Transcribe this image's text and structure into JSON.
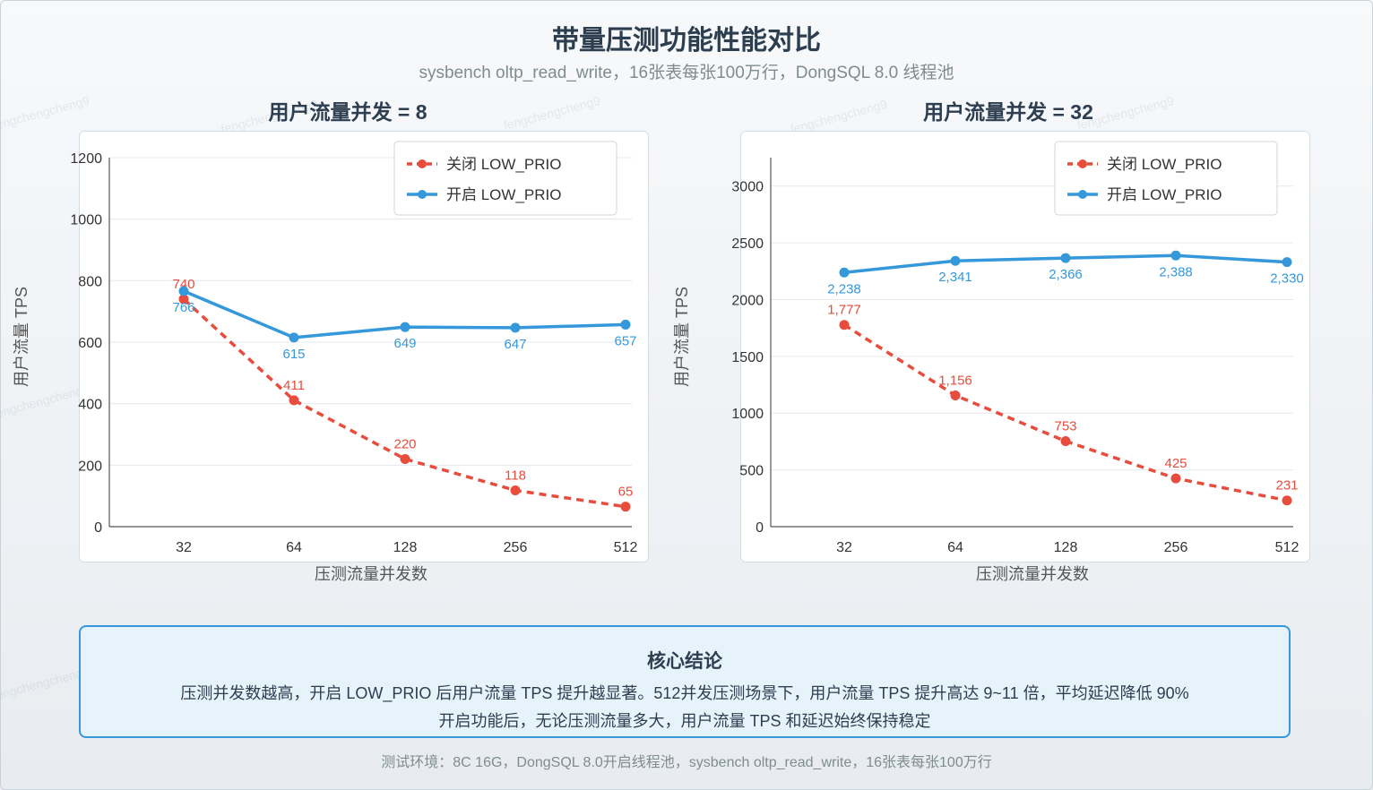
{
  "title": "带量压测功能性能对比",
  "subtitle": "sysbench oltp_read_write，16张表每张100万行，DongSQL 8.0 线程池",
  "watermark": "fengchengcheng9",
  "colors": {
    "off": "#e74c3c",
    "on": "#3498db",
    "grid": "#e5e8eb",
    "axis": "#555555"
  },
  "chart_data": [
    {
      "type": "line",
      "title": "用户流量并发 = 8",
      "xlabel": "压测流量并发数",
      "ylabel": "用户流量 TPS",
      "categories": [
        "32",
        "64",
        "128",
        "256",
        "512"
      ],
      "ylim": [
        0,
        1200
      ],
      "yticks": [
        0,
        200,
        400,
        600,
        800,
        1000,
        1200
      ],
      "grid": true,
      "legend": "top-right",
      "series": [
        {
          "name": "关闭 LOW_PRIO",
          "style": "dashed",
          "color": "#e74c3c",
          "values": [
            740,
            411,
            220,
            118,
            65
          ],
          "labels": [
            "740",
            "411",
            "220",
            "118",
            "65"
          ]
        },
        {
          "name": "开启 LOW_PRIO",
          "style": "solid",
          "color": "#3498db",
          "values": [
            766,
            615,
            649,
            647,
            657
          ],
          "labels": [
            "766",
            "615",
            "649",
            "647",
            "657"
          ]
        }
      ]
    },
    {
      "type": "line",
      "title": "用户流量并发 = 32",
      "xlabel": "压测流量并发数",
      "ylabel": "用户流量 TPS",
      "categories": [
        "32",
        "64",
        "128",
        "256",
        "512"
      ],
      "ylim": [
        0,
        3250
      ],
      "yticks": [
        0,
        500,
        1000,
        1500,
        2000,
        2500,
        3000
      ],
      "grid": true,
      "legend": "top-right",
      "series": [
        {
          "name": "关闭 LOW_PRIO",
          "style": "dashed",
          "color": "#e74c3c",
          "values": [
            1777,
            1156,
            753,
            425,
            231
          ],
          "labels": [
            "1,777",
            "1,156",
            "753",
            "425",
            "231"
          ]
        },
        {
          "name": "开启 LOW_PRIO",
          "style": "solid",
          "color": "#3498db",
          "values": [
            2238,
            2341,
            2366,
            2388,
            2330
          ],
          "labels": [
            "2,238",
            "2,341",
            "2,366",
            "2,388",
            "2,330"
          ]
        }
      ]
    }
  ],
  "conclusion": {
    "title": "核心结论",
    "line1": "压测并发数越高，开启 LOW_PRIO 后用户流量 TPS 提升越显著。512并发压测场景下，用户流量 TPS 提升高达 9~11 倍，平均延迟降低 90%",
    "line2": "开启功能后，无论压测流量多大，用户流量 TPS 和延迟始终保持稳定"
  },
  "footer": "测试环境：8C 16G，DongSQL 8.0开启线程池，sysbench oltp_read_write，16张表每张100万行"
}
